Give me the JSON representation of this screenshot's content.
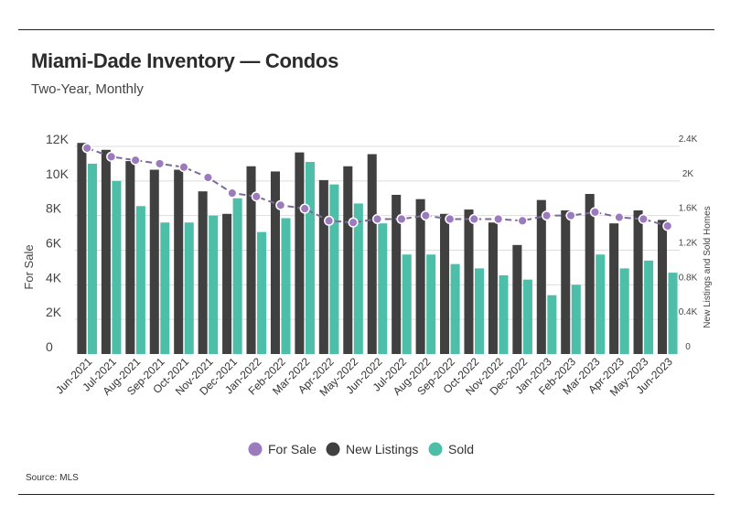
{
  "header": {
    "title": "Miami-Dade Inventory — Condos",
    "subtitle": "Two-Year, Monthly"
  },
  "footer": {
    "source": "Source: MLS"
  },
  "colors": {
    "for_sale": "#9b7bbd",
    "for_sale_line": "#7b6a9a",
    "new_listings": "#404040",
    "sold": "#4dbfa8",
    "grid": "#dddddd"
  },
  "chart_data": {
    "type": "bar",
    "title": "Miami-Dade Inventory — Condos",
    "subtitle": "Two-Year, Monthly",
    "categories": [
      "Jun-2021",
      "Jul-2021",
      "Aug-2021",
      "Sep-2021",
      "Oct-2021",
      "Nov-2021",
      "Dec-2021",
      "Jan-2022",
      "Feb-2022",
      "Mar-2022",
      "Apr-2022",
      "May-2022",
      "Jun-2022",
      "Jul-2022",
      "Aug-2022",
      "Sep-2022",
      "Oct-2022",
      "Nov-2022",
      "Dec-2022",
      "Jan-2023",
      "Feb-2023",
      "Mar-2023",
      "Apr-2023",
      "May-2023",
      "Jun-2023"
    ],
    "left_axis": {
      "label": "For Sale",
      "ylim": [
        0,
        12000
      ],
      "ticks": [
        "0",
        "2K",
        "4K",
        "6K",
        "8K",
        "10K",
        "12K"
      ]
    },
    "right_axis": {
      "label": "New Listings and Sold Homes",
      "ylim": [
        0,
        2400
      ],
      "ticks": [
        "0",
        "0.4K",
        "0.8K",
        "1.2K",
        "1.6K",
        "2K",
        "2.4K"
      ]
    },
    "series": [
      {
        "name": "For Sale",
        "type": "line",
        "axis": "left",
        "values": [
          11900,
          11400,
          11200,
          11000,
          10800,
          10200,
          9300,
          9100,
          8600,
          8400,
          7700,
          7600,
          7800,
          7800,
          8000,
          7800,
          7800,
          7800,
          7700,
          8000,
          8000,
          8200,
          7900,
          7800,
          7400
        ]
      },
      {
        "name": "New Listings",
        "type": "bar",
        "axis": "right",
        "values": [
          2440,
          2360,
          2230,
          2130,
          2130,
          1880,
          1620,
          2170,
          2110,
          2330,
          2010,
          2170,
          2310,
          1840,
          1790,
          1620,
          1670,
          1520,
          1260,
          1780,
          1660,
          1850,
          1510,
          1660,
          1550
        ]
      },
      {
        "name": "Sold",
        "type": "bar",
        "axis": "right",
        "values": [
          2200,
          2000,
          1710,
          1520,
          1520,
          1600,
          1800,
          1410,
          1570,
          2220,
          1960,
          1740,
          1510,
          1150,
          1150,
          1040,
          990,
          910,
          860,
          680,
          800,
          1150,
          990,
          1080,
          940
        ]
      }
    ],
    "legend": [
      "For Sale",
      "New Listings",
      "Sold"
    ],
    "legend_position": "bottom"
  }
}
